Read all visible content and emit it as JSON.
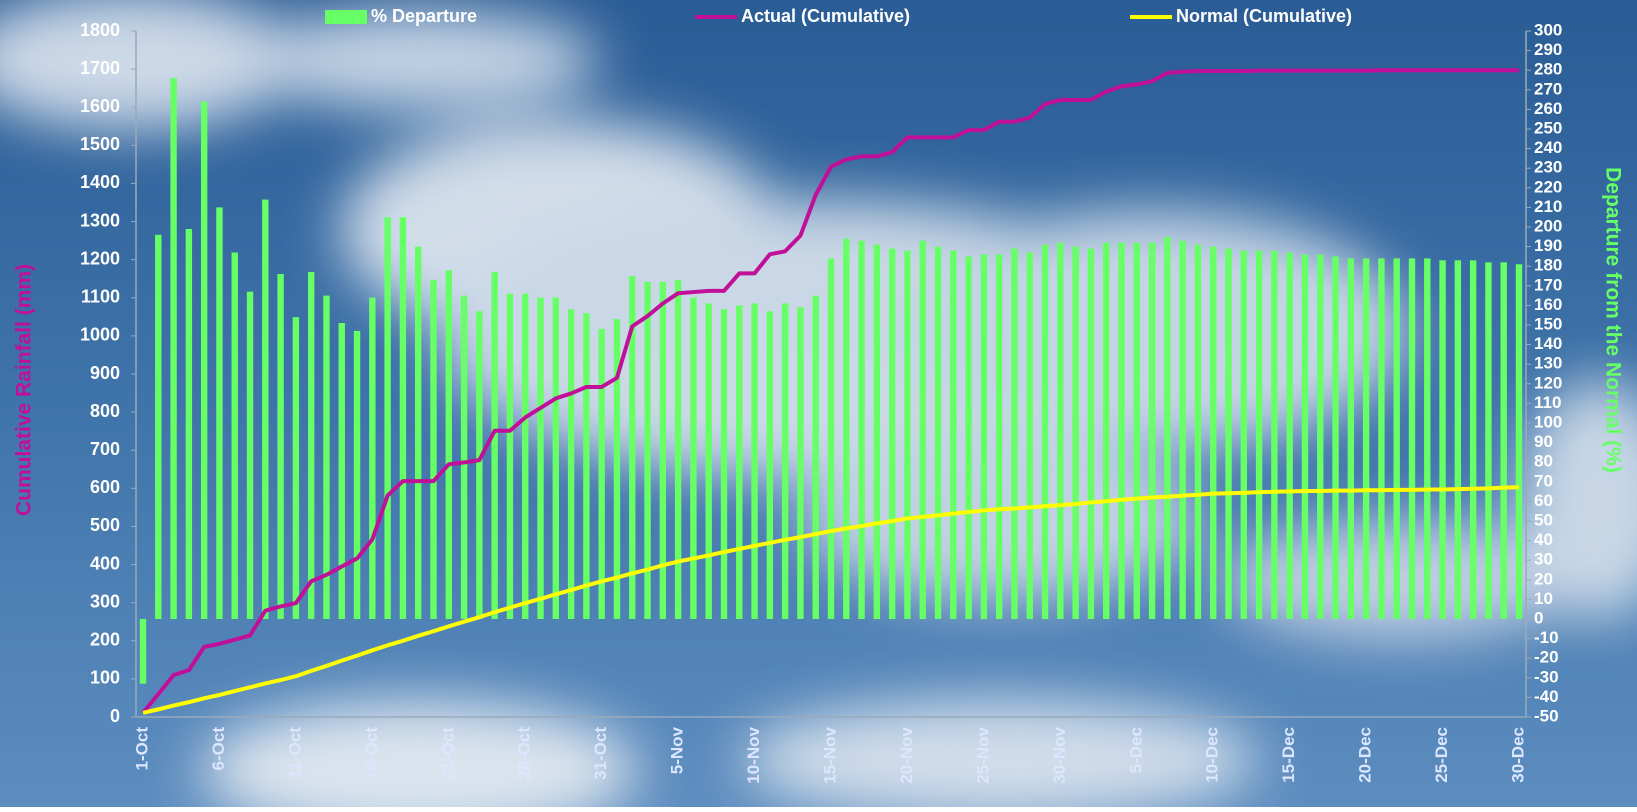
{
  "chart_data": {
    "type": "combo",
    "y_label": "Cumulative Rainfall (mm)",
    "y2_label": "Departure from the Normal (%)",
    "categories": [
      "1-Oct",
      null,
      null,
      null,
      null,
      "6-Oct",
      null,
      null,
      null,
      null,
      "11-Oct",
      null,
      null,
      null,
      null,
      "16-Oct",
      null,
      null,
      null,
      null,
      "21-Oct",
      null,
      null,
      null,
      null,
      "26-Oct",
      null,
      null,
      null,
      null,
      "31-Oct",
      null,
      null,
      null,
      null,
      "5-Nov",
      null,
      null,
      null,
      null,
      "10-Nov",
      null,
      null,
      null,
      null,
      "15-Nov",
      null,
      null,
      null,
      null,
      "20-Nov",
      null,
      null,
      null,
      null,
      "25-Nov",
      null,
      null,
      null,
      null,
      "30-Nov",
      null,
      null,
      null,
      null,
      "5-Dec",
      null,
      null,
      null,
      null,
      "10-Dec",
      null,
      null,
      null,
      null,
      "15-Dec",
      null,
      null,
      null,
      null,
      "20-Dec",
      null,
      null,
      null,
      null,
      "25-Dec",
      null,
      null,
      null,
      null,
      "30-Dec"
    ],
    "series": [
      {
        "name": "% Departure",
        "type": "bar",
        "axis": "y2",
        "color": "#66ff66",
        "values": [
          -33,
          196,
          276,
          199,
          264,
          210,
          187,
          167,
          214,
          176,
          154,
          177,
          165,
          151,
          147,
          164,
          205,
          205,
          190,
          173,
          178,
          165,
          157,
          177,
          166,
          166,
          164,
          164,
          158,
          156,
          148,
          153,
          175,
          172,
          172,
          173,
          164,
          161,
          158,
          160,
          161,
          157,
          161,
          159,
          165,
          184,
          194,
          193,
          191,
          189,
          188,
          193,
          190,
          188,
          185,
          186,
          186,
          189,
          187,
          191,
          192,
          190,
          189,
          192,
          192,
          192,
          192,
          195,
          193,
          191,
          190,
          189,
          188,
          188,
          188,
          187,
          186,
          186,
          185,
          184,
          184,
          184,
          184,
          184,
          184,
          183,
          183,
          183,
          182,
          182,
          181
        ]
      },
      {
        "name": "Actual (Cumulative)",
        "type": "line",
        "color": "#c0109a",
        "values": [
          11,
          60,
          110,
          123,
          184,
          192,
          203,
          214,
          279,
          290,
          299,
          356,
          373,
          395,
          416,
          466,
          581,
          619,
          619,
          619,
          663,
          668,
          674,
          751,
          751,
          786,
          811,
          836,
          849,
          866,
          866,
          890,
          1025,
          1052,
          1085,
          1112,
          1115,
          1118,
          1118,
          1164,
          1164,
          1214,
          1222,
          1263,
          1370,
          1444,
          1463,
          1471,
          1471,
          1482,
          1521,
          1521,
          1521,
          1521,
          1540,
          1540,
          1562,
          1562,
          1573,
          1608,
          1619,
          1619,
          1619,
          1641,
          1655,
          1660,
          1668,
          1690,
          1693,
          1695,
          1695,
          1695,
          1695,
          1696,
          1696,
          1696,
          1696,
          1696,
          1696,
          1696,
          1696,
          1697,
          1697,
          1697,
          1697,
          1697,
          1697,
          1697,
          1697,
          1697,
          1697
        ]
      },
      {
        "name": "Normal (Cumulative)",
        "type": "line",
        "color": "#ffff00",
        "values": [
          11,
          20,
          30,
          39,
          49,
          58,
          68,
          78,
          88,
          97,
          107,
          121,
          134,
          148,
          161,
          175,
          188,
          200,
          213,
          225,
          238,
          250,
          262,
          275,
          287,
          299,
          310,
          322,
          333,
          345,
          356,
          366,
          377,
          387,
          398,
          408,
          416,
          424,
          433,
          441,
          449,
          457,
          465,
          472,
          480,
          488,
          495,
          501,
          508,
          514,
          521,
          525,
          529,
          534,
          538,
          542,
          545,
          547,
          550,
          553,
          556,
          559,
          563,
          566,
          570,
          573,
          576,
          578,
          581,
          583,
          586,
          587,
          588,
          590,
          591,
          592,
          593,
          593,
          594,
          594,
          595,
          595,
          596,
          596,
          597,
          597,
          598,
          599,
          600,
          602,
          603
        ]
      }
    ],
    "ylim": [
      0,
      1800
    ],
    "yticks": [
      0,
      100,
      200,
      300,
      400,
      500,
      600,
      700,
      800,
      900,
      1000,
      1100,
      1200,
      1300,
      1400,
      1500,
      1600,
      1700,
      1800
    ],
    "y2lim": [
      -50,
      300
    ],
    "y2ticks": [
      -50,
      -40,
      -30,
      -20,
      -10,
      0,
      10,
      20,
      30,
      40,
      50,
      60,
      70,
      80,
      90,
      100,
      110,
      120,
      130,
      140,
      150,
      160,
      170,
      180,
      190,
      200,
      210,
      220,
      230,
      240,
      250,
      260,
      270,
      280,
      290,
      300
    ]
  }
}
